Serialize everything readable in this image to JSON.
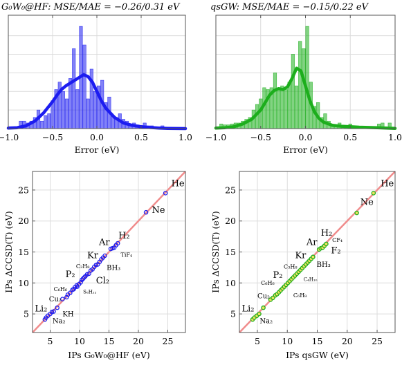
{
  "colors": {
    "hf": "#1c1cf0",
    "qs": "#1cae1c",
    "diag": "#f08c8c",
    "frame": "#555555",
    "grid": "#dcdcdc"
  },
  "chart_data": [
    {
      "type": "bar",
      "title": "G₀W₀@HF: MSE/MAE = −0.26/0.31 eV",
      "xlabel": "Error (eV)",
      "ylabel": "",
      "xlim": [
        -1.0,
        1.0
      ],
      "xticks": [
        "−1.0",
        "−0.5",
        "0.0",
        "0.5",
        "1.0"
      ],
      "grid": true,
      "series": [
        {
          "kind": "histogram",
          "bin_start": -1.0,
          "bin_width": 0.04,
          "values": [
            0,
            0,
            0,
            0.8,
            0.8,
            0.6,
            0.8,
            1.2,
            2.0,
            0.8,
            1.4,
            1.6,
            3.0,
            4.2,
            5.0,
            4.0,
            3.2,
            5.4,
            8.6,
            4.2,
            11.0,
            9.0,
            3.2,
            6.4,
            4.0,
            4.6,
            5.2,
            2.8,
            3.4,
            1.4,
            1.2,
            1.6,
            1.0,
            0.8,
            0.5,
            0.6,
            0.4,
            0.3,
            0.6,
            0.3,
            0.3,
            0,
            0.2,
            0.3,
            0,
            0,
            0,
            0,
            0,
            0
          ]
        },
        {
          "kind": "density",
          "x": [
            -1.0,
            -0.9,
            -0.8,
            -0.7,
            -0.6,
            -0.5,
            -0.45,
            -0.4,
            -0.35,
            -0.3,
            -0.25,
            -0.2,
            -0.15,
            -0.1,
            -0.05,
            0.0,
            0.05,
            0.1,
            0.2,
            0.3,
            0.4,
            0.5,
            0.6,
            0.7,
            0.8,
            0.9,
            1.0
          ],
          "y": [
            0.05,
            0.1,
            0.3,
            0.8,
            1.7,
            2.9,
            3.6,
            4.2,
            4.6,
            4.9,
            5.2,
            5.5,
            5.8,
            5.6,
            5.0,
            4.0,
            3.0,
            2.2,
            1.2,
            0.6,
            0.35,
            0.2,
            0.12,
            0.05,
            0.02,
            0.01,
            0.0
          ]
        }
      ]
    },
    {
      "type": "bar",
      "title": "qsGW: MSE/MAE = −0.15/0.22 eV",
      "xlabel": "Error (eV)",
      "ylabel": "",
      "xlim": [
        -1.0,
        1.0
      ],
      "xticks": [
        "−1.0",
        "−0.5",
        "0.0",
        "0.5",
        "1.0"
      ],
      "grid": true,
      "series": [
        {
          "kind": "histogram",
          "bin_start": -1.0,
          "bin_width": 0.04,
          "values": [
            0,
            0.5,
            0.4,
            0.4,
            0.5,
            0.6,
            0.6,
            0.8,
            1.0,
            1.2,
            2.0,
            2.6,
            3.2,
            4.4,
            4.2,
            4.4,
            6.0,
            4.2,
            4.6,
            4.2,
            5.0,
            8.0,
            4.6,
            9.4,
            8.6,
            11.0,
            5.0,
            2.4,
            2.8,
            1.2,
            1.6,
            0.8,
            0.4,
            0.3,
            0.6,
            0.3,
            0.2,
            0.5,
            0.2,
            0.2,
            0.1,
            0.1,
            0.2,
            0.2,
            0.2,
            0.5,
            0.6,
            0,
            0.6,
            0
          ]
        },
        {
          "kind": "density",
          "x": [
            -1.0,
            -0.9,
            -0.8,
            -0.7,
            -0.6,
            -0.5,
            -0.4,
            -0.35,
            -0.3,
            -0.25,
            -0.2,
            -0.15,
            -0.1,
            -0.05,
            0.0,
            0.05,
            0.1,
            0.15,
            0.2,
            0.3,
            0.4,
            0.5,
            0.6,
            0.7,
            0.8,
            0.9,
            1.0
          ],
          "y": [
            0.05,
            0.1,
            0.2,
            0.5,
            1.0,
            2.0,
            3.6,
            4.1,
            4.3,
            4.2,
            4.5,
            5.4,
            6.5,
            6.2,
            4.6,
            3.0,
            1.8,
            1.1,
            0.7,
            0.35,
            0.25,
            0.2,
            0.15,
            0.12,
            0.1,
            0.06,
            0.02
          ]
        }
      ]
    },
    {
      "type": "scatter",
      "title": "",
      "xlabel": "IPs G₀W₀@HF (eV)",
      "ylabel": "IPs ΔCCSD(T) (eV)",
      "xlim": [
        2,
        28
      ],
      "ylim": [
        2,
        28
      ],
      "xticks": [
        5,
        10,
        15,
        20,
        25
      ],
      "yticks": [
        5,
        10,
        15,
        20,
        25
      ],
      "grid": true,
      "points": [
        [
          4.1,
          4.1
        ],
        [
          4.3,
          4.4
        ],
        [
          4.6,
          4.7
        ],
        [
          5.0,
          5.0
        ],
        [
          5.3,
          5.3
        ],
        [
          5.6,
          5.4
        ],
        [
          6.2,
          6.0
        ],
        [
          7.1,
          7.4
        ],
        [
          7.8,
          7.7
        ],
        [
          8.0,
          8.1
        ],
        [
          8.4,
          8.4
        ],
        [
          8.8,
          8.9
        ],
        [
          9.0,
          9.0
        ],
        [
          9.2,
          9.3
        ],
        [
          9.5,
          9.6
        ],
        [
          9.6,
          9.4
        ],
        [
          9.9,
          9.8
        ],
        [
          10.2,
          10.1
        ],
        [
          10.4,
          10.5
        ],
        [
          10.6,
          10.7
        ],
        [
          10.8,
          10.9
        ],
        [
          11.0,
          11.1
        ],
        [
          11.3,
          11.4
        ],
        [
          11.6,
          11.5
        ],
        [
          11.9,
          12.0
        ],
        [
          12.2,
          12.2
        ],
        [
          12.5,
          12.6
        ],
        [
          12.8,
          12.9
        ],
        [
          13.1,
          13.0
        ],
        [
          13.4,
          13.4
        ],
        [
          13.7,
          13.8
        ],
        [
          14.0,
          14.1
        ],
        [
          14.3,
          14.4
        ],
        [
          15.3,
          15.5
        ],
        [
          15.6,
          15.6
        ],
        [
          15.9,
          15.7
        ],
        [
          16.2,
          16.1
        ],
        [
          16.5,
          16.4
        ],
        [
          21.3,
          21.4
        ],
        [
          24.6,
          24.5
        ]
      ],
      "annotations": [
        {
          "t": "He",
          "x": 25.6,
          "y": 25.6,
          "sz": 13
        },
        {
          "t": "Ne",
          "x": 22.3,
          "y": 21.3,
          "sz": 13
        },
        {
          "t": "H₂",
          "x": 16.6,
          "y": 17.2,
          "sz": 13
        },
        {
          "t": "Ar",
          "x": 13.3,
          "y": 16.1,
          "sz": 13
        },
        {
          "t": "TiF₄",
          "x": 17.0,
          "y": 14.2,
          "sz": 8
        },
        {
          "t": "Kr",
          "x": 11.3,
          "y": 14.0,
          "sz": 13
        },
        {
          "t": "BH₃",
          "x": 14.6,
          "y": 12.1,
          "sz": 10
        },
        {
          "t": "C₃H₈",
          "x": 9.4,
          "y": 12.4,
          "sz": 8
        },
        {
          "t": "P₂",
          "x": 7.6,
          "y": 10.9,
          "sz": 13
        },
        {
          "t": "Cl₂",
          "x": 12.8,
          "y": 9.9,
          "sz": 13
        },
        {
          "t": "S₈H₁₂",
          "x": 10.6,
          "y": 8.3,
          "sz": 7
        },
        {
          "t": "C₆H₆",
          "x": 5.6,
          "y": 8.7,
          "sz": 8
        },
        {
          "t": "Cu₂",
          "x": 4.8,
          "y": 7.0,
          "sz": 10
        },
        {
          "t": "Li₂",
          "x": 2.4,
          "y": 5.4,
          "sz": 13
        },
        {
          "t": "KH",
          "x": 7.1,
          "y": 4.6,
          "sz": 10
        },
        {
          "t": "Na₂",
          "x": 5.4,
          "y": 3.5,
          "sz": 10
        }
      ]
    },
    {
      "type": "scatter",
      "title": "",
      "xlabel": "IPs qsGW (eV)",
      "ylabel": "IPs ΔCCSD(T) (eV)",
      "xlim": [
        2,
        28
      ],
      "ylim": [
        2,
        28
      ],
      "xticks": [
        5,
        10,
        15,
        20,
        25
      ],
      "yticks": [
        5,
        10,
        15,
        20,
        25
      ],
      "grid": true,
      "points": [
        [
          4.2,
          4.1
        ],
        [
          4.5,
          4.4
        ],
        [
          4.9,
          4.7
        ],
        [
          5.3,
          5.0
        ],
        [
          6.0,
          6.0
        ],
        [
          7.2,
          7.3
        ],
        [
          7.6,
          7.6
        ],
        [
          8.0,
          8.0
        ],
        [
          8.3,
          8.2
        ],
        [
          8.6,
          8.5
        ],
        [
          8.9,
          8.8
        ],
        [
          9.2,
          9.1
        ],
        [
          9.5,
          9.4
        ],
        [
          9.8,
          9.7
        ],
        [
          10.1,
          10.0
        ],
        [
          10.4,
          10.3
        ],
        [
          10.7,
          10.6
        ],
        [
          11.0,
          10.9
        ],
        [
          11.3,
          11.2
        ],
        [
          11.6,
          11.5
        ],
        [
          11.9,
          11.8
        ],
        [
          12.2,
          12.1
        ],
        [
          12.5,
          12.4
        ],
        [
          12.8,
          12.7
        ],
        [
          13.1,
          13.0
        ],
        [
          13.4,
          13.3
        ],
        [
          13.7,
          13.6
        ],
        [
          14.0,
          13.9
        ],
        [
          14.3,
          14.2
        ],
        [
          15.3,
          15.4
        ],
        [
          15.6,
          15.6
        ],
        [
          15.9,
          15.7
        ],
        [
          16.2,
          16.0
        ],
        [
          16.5,
          16.3
        ],
        [
          21.6,
          21.3
        ],
        [
          24.4,
          24.5
        ]
      ],
      "annotations": [
        {
          "t": "He",
          "x": 25.6,
          "y": 25.6,
          "sz": 13
        },
        {
          "t": "Ne",
          "x": 22.2,
          "y": 22.6,
          "sz": 13
        },
        {
          "t": "H₂",
          "x": 15.6,
          "y": 17.6,
          "sz": 13
        },
        {
          "t": "CF₄",
          "x": 17.5,
          "y": 16.6,
          "sz": 8
        },
        {
          "t": "Ar",
          "x": 13.2,
          "y": 16.1,
          "sz": 13
        },
        {
          "t": "F₂",
          "x": 17.3,
          "y": 14.8,
          "sz": 13
        },
        {
          "t": "Kr",
          "x": 11.3,
          "y": 14.0,
          "sz": 13
        },
        {
          "t": "BH₃",
          "x": 14.9,
          "y": 12.6,
          "sz": 10
        },
        {
          "t": "C₃H₈",
          "x": 9.4,
          "y": 12.3,
          "sz": 8
        },
        {
          "t": "P₂",
          "x": 7.6,
          "y": 10.8,
          "sz": 13
        },
        {
          "t": "C₄H₁₀",
          "x": 12.7,
          "y": 10.3,
          "sz": 7
        },
        {
          "t": "C₆H₆",
          "x": 5.6,
          "y": 9.7,
          "sz": 8
        },
        {
          "t": "C₆H₈",
          "x": 11.0,
          "y": 7.7,
          "sz": 8
        },
        {
          "t": "Cu₂",
          "x": 5.0,
          "y": 7.5,
          "sz": 10
        },
        {
          "t": "Li₂",
          "x": 2.4,
          "y": 5.4,
          "sz": 13
        },
        {
          "t": "Na₂",
          "x": 5.4,
          "y": 3.5,
          "sz": 10
        }
      ]
    }
  ]
}
